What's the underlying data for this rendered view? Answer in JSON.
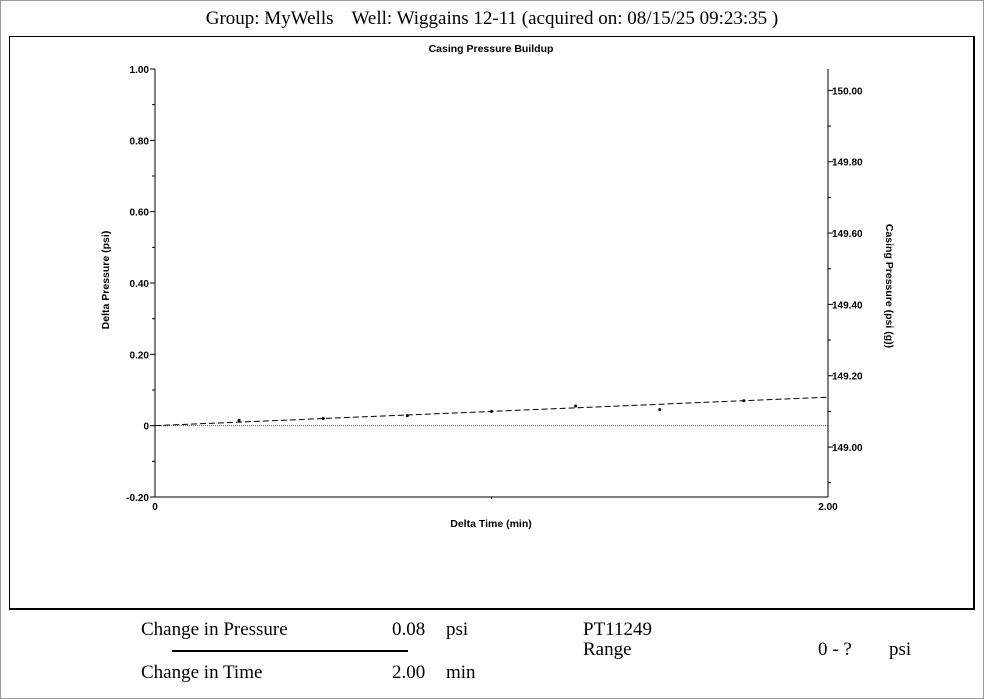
{
  "header": {
    "group": "Group: MyWells",
    "well": "Well: Wiggains 12-11 (acquired on: 08/15/25 09:23:35 )"
  },
  "chart_data": {
    "type": "scatter",
    "title": "Casing Pressure Buildup",
    "xlabel": "Delta Time (min)",
    "ylabel": "Delta Pressure (psi)",
    "y2label": "Casing Pressure (psi (g))",
    "xlim": [
      0,
      2.0
    ],
    "ylim": [
      -0.2,
      1.0
    ],
    "y2lim": [
      148.86,
      150.06
    ],
    "x_ticks": [
      "0",
      "2.00"
    ],
    "y_ticks": [
      {
        "v": 1.0,
        "label": "1.00"
      },
      {
        "v": 0.8,
        "label": "0.80"
      },
      {
        "v": 0.6,
        "label": "0.60"
      },
      {
        "v": 0.4,
        "label": "0.40"
      },
      {
        "v": 0.2,
        "label": "0.20"
      },
      {
        "v": 0.0,
        "label": "0"
      },
      {
        "v": -0.2,
        "label": "-0.20"
      }
    ],
    "y2_ticks": [
      {
        "v": 150.0,
        "label": "150.00"
      },
      {
        "v": 149.8,
        "label": "149.80"
      },
      {
        "v": 149.6,
        "label": "149.60"
      },
      {
        "v": 149.4,
        "label": "149.40"
      },
      {
        "v": 149.2,
        "label": "149.20"
      },
      {
        "v": 149.0,
        "label": "149.00"
      }
    ],
    "points": [
      {
        "x": 0.25,
        "y": 0.015
      },
      {
        "x": 0.5,
        "y": 0.02
      },
      {
        "x": 0.75,
        "y": 0.028
      },
      {
        "x": 1.0,
        "y": 0.04
      },
      {
        "x": 1.25,
        "y": 0.055
      },
      {
        "x": 1.5,
        "y": 0.045
      },
      {
        "x": 1.75,
        "y": 0.07
      }
    ],
    "trend_line": {
      "x": [
        0,
        2.0
      ],
      "y": [
        0.0,
        0.08
      ]
    },
    "baseline_y": 0.0,
    "grid": false
  },
  "footer": {
    "change_pressure_label": "Change in Pressure",
    "change_pressure_value": "0.08",
    "change_pressure_unit": "psi",
    "change_time_label": "Change in Time",
    "change_time_value": "2.00",
    "change_time_unit": "min",
    "device_id": "PT11249",
    "range_label": "Range",
    "range_value": "0 - ?",
    "range_unit": "psi"
  }
}
